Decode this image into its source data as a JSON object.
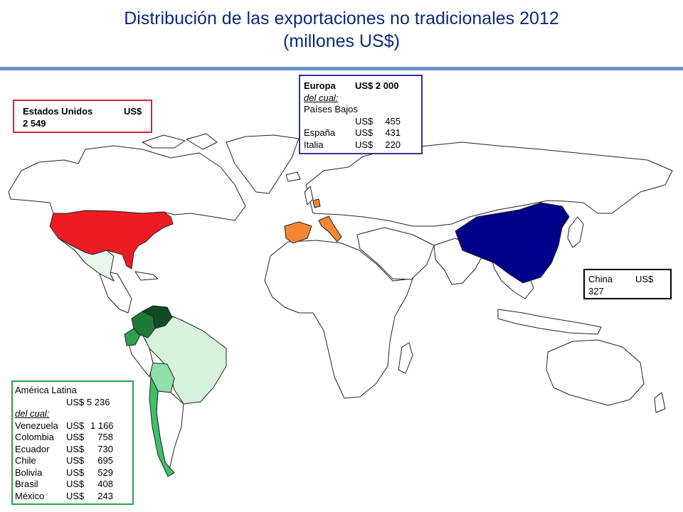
{
  "title": {
    "line1": "Distribución de las exportaciones no tradicionales 2012",
    "line2": "(millones US$)"
  },
  "usa": {
    "label": "Estados Unidos",
    "currency": "US$",
    "value": "2 549",
    "color": "#ed1c24"
  },
  "europe": {
    "label": "Europa",
    "total": "US$ 2 000",
    "subheading": "del cual:",
    "countries": [
      {
        "name": "Países Bajos",
        "currency": "US$",
        "value": "455"
      },
      {
        "name": "España",
        "currency": "US$",
        "value": "431"
      },
      {
        "name": "Italia",
        "currency": "US$",
        "value": "220"
      }
    ],
    "color": "#f58634"
  },
  "china": {
    "label": "China",
    "currency": "US$",
    "value": "327",
    "color": "#00008b"
  },
  "latin_america": {
    "label": "América Latina",
    "total": "US$ 5 236",
    "subheading": "del cual:",
    "countries": [
      {
        "name": "Venezuela",
        "currency": "US$",
        "value": "1 166"
      },
      {
        "name": "Colombia",
        "currency": "US$",
        "value": "758"
      },
      {
        "name": "Ecuador",
        "currency": "US$",
        "value": "730"
      },
      {
        "name": "Chile",
        "currency": "US$",
        "value": "695"
      },
      {
        "name": "Bolivia",
        "currency": "US$",
        "value": "529"
      },
      {
        "name": "Brasil",
        "currency": "US$",
        "value": "408"
      },
      {
        "name": "México",
        "currency": "US$",
        "value": "243"
      }
    ],
    "color": "#2e9e4f"
  }
}
